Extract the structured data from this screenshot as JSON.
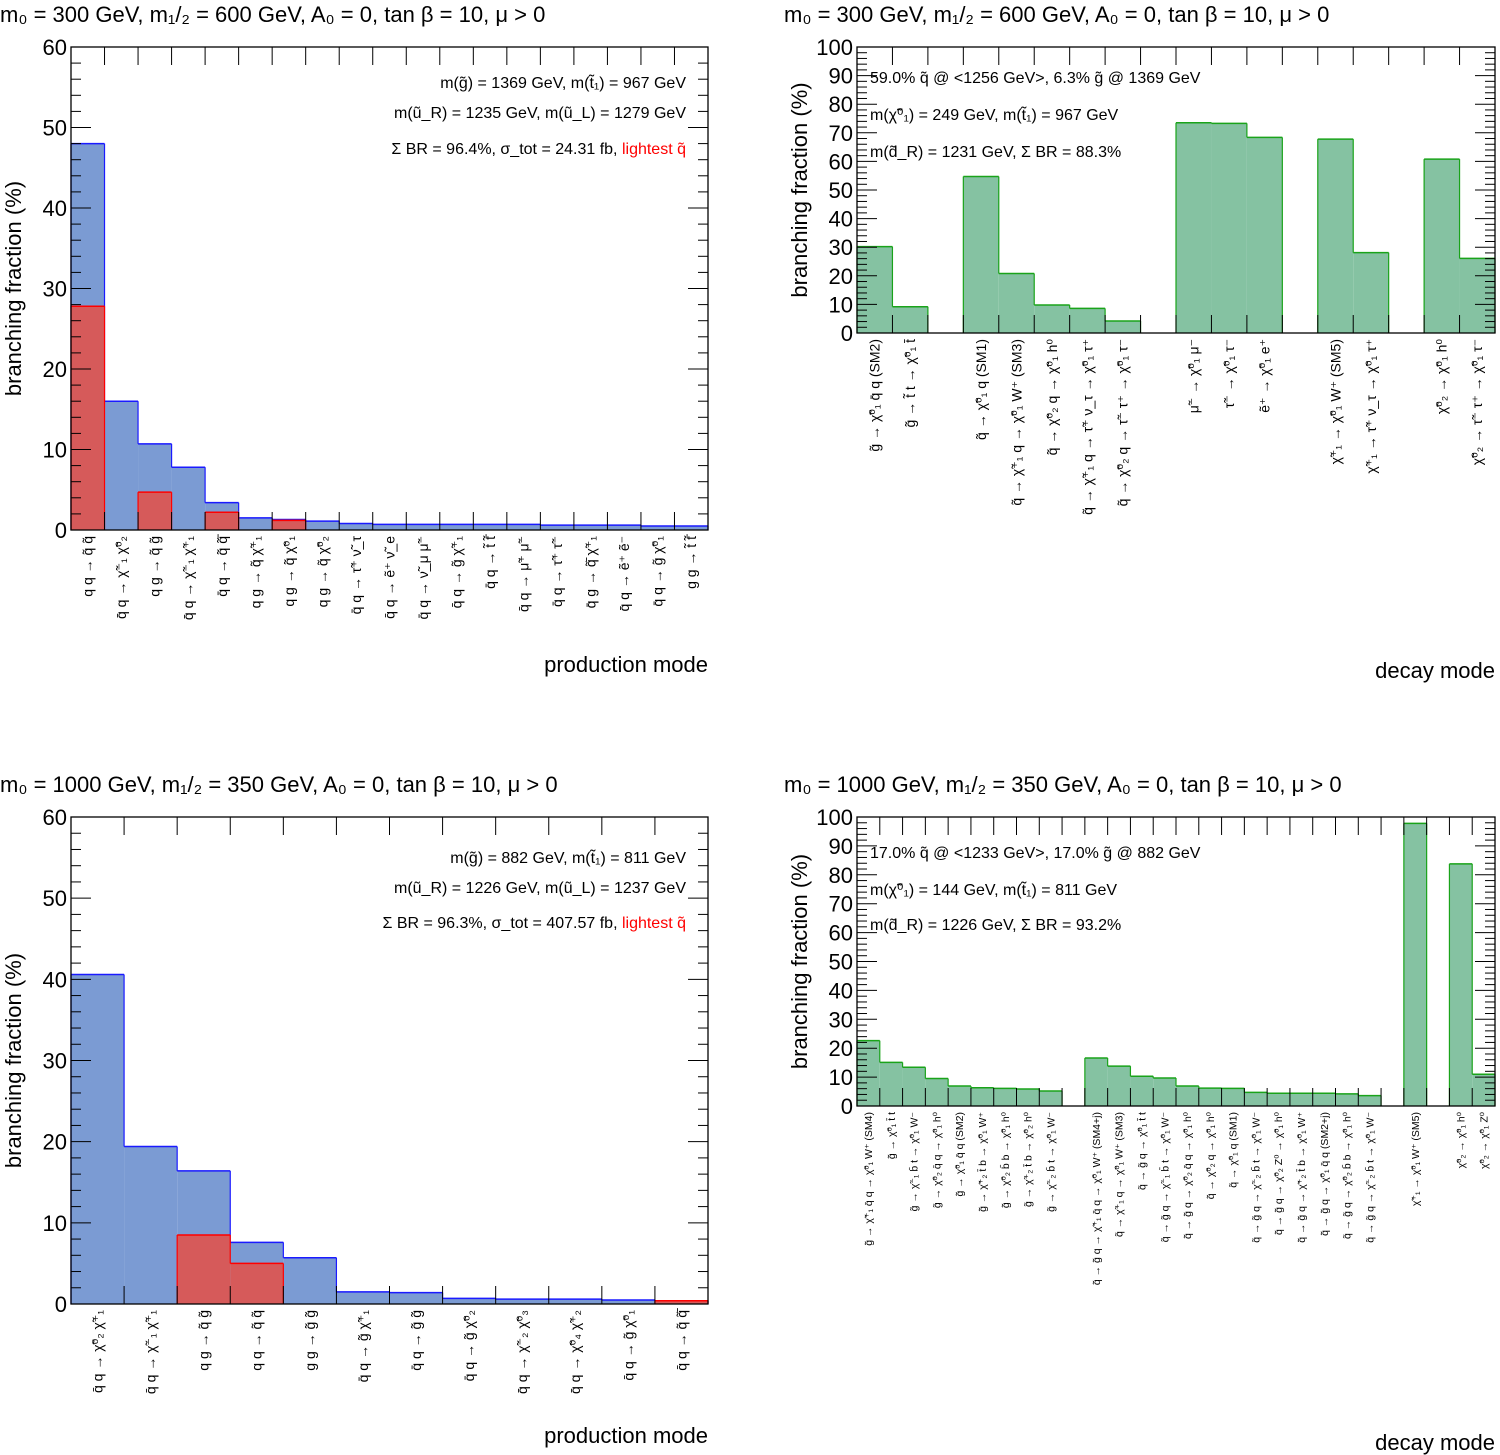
{
  "chart_data": [
    {
      "id": "p1",
      "type": "bar",
      "kind": "production",
      "title": "m₀ = 300 GeV, m₁/₂ = 600 GeV,  A₀ = 0, tan β = 10, μ > 0",
      "title_parts": {
        "m0": "300",
        "mhalf": "600",
        "A0": "0",
        "tanb": "10",
        "mu": "μ > 0"
      },
      "ylabel": "branching fraction (%)",
      "xlabel": "production mode",
      "ylim": [
        0,
        60
      ],
      "yticks": [
        0,
        10,
        20,
        30,
        40,
        50,
        60
      ],
      "info_lines": [
        "m(g̃) = 1369 GeV,  m(t̃₁) = 967 GeV",
        "m(ũ_R) = 1235 GeV, m(ũ_L) = 1279 GeV",
        "Σ BR = 96.4%, σ_tot = 24.31 fb, "
      ],
      "info_highlight": "lightest q̃",
      "categories": [
        "q q → q̃ q̃",
        "q̄ q → χ̃⁻₁ χ̃⁰₂",
        "q g → q̃ g̃",
        "q̄ q → χ̃⁻₁ χ̃⁺₁",
        "q̄ q → q̃ q̃̄",
        "q g → q̃ χ̃⁺₁",
        "q g → q̃ χ̃⁰₁",
        "q g → q̃ χ̃⁰₂",
        "q̄ q → τ̃⁺ ν̃_τ",
        "q̄ q → ẽ⁺ ν̃_e",
        "q̄ q → ν̃_μ μ̃⁻",
        "q̄ q → g̃ χ̃⁺₁",
        "q̄ q → t̃ t̃̄",
        "q̄ q → μ̃⁺ μ̃⁻",
        "q̄ q → τ̃⁺ τ̃⁻",
        "q̄ g → q̃̄ χ̃⁺₁",
        "q̄ q → ẽ⁺ ẽ⁻",
        "q̄ q → g̃ χ̃⁰₁",
        "g g → t̃ t̃̄"
      ],
      "series": [
        {
          "name": "total",
          "color": "#7b9bd3",
          "edge": "#1a1aff",
          "values": [
            48.0,
            16.0,
            10.7,
            7.8,
            3.4,
            1.5,
            1.3,
            1.1,
            0.8,
            0.7,
            0.7,
            0.7,
            0.7,
            0.7,
            0.6,
            0.6,
            0.6,
            0.5,
            0.5
          ]
        },
        {
          "name": "lightest q̃",
          "color": "#d65a5a",
          "edge": "#ff0000",
          "values": [
            27.8,
            0,
            4.7,
            0,
            2.2,
            0,
            1.2,
            0,
            0,
            0,
            0,
            0,
            0,
            0,
            0,
            0,
            0,
            0,
            0
          ]
        }
      ]
    },
    {
      "id": "p2",
      "type": "bar",
      "kind": "decay",
      "title": "m₀ = 300 GeV, m₁/₂ = 600 GeV,  A₀ = 0, tan β = 10, μ > 0",
      "title_parts": {
        "m0": "300",
        "mhalf": "600",
        "A0": "0",
        "tanb": "10",
        "mu": "μ > 0"
      },
      "ylabel": "branching fraction (%)",
      "xlabel": "decay mode",
      "ylim": [
        0,
        100
      ],
      "yticks": [
        0,
        10,
        20,
        30,
        40,
        50,
        60,
        70,
        80,
        90,
        100
      ],
      "info_lines": [
        "59.0% q̃ @ <1256 GeV>,  6.3% g̃ @ 1369 GeV",
        "m(χ̃⁰₁) = 249 GeV,  m(t̃₁) = 967 GeV",
        "m(d̃_R) = 1231 GeV, Σ BR = 88.3%"
      ],
      "categories": [
        "g̃ → χ̃⁰₁ q̄ q (SM2)",
        "g̃ → t̃ t → χ̃⁰₁ t̄",
        "",
        "q̃ → χ̃⁰₁ q (SM1)",
        "q̃ → χ̃⁺₁ q → χ̃⁰₁ W⁺ (SM3)",
        "q̃ → χ̃⁰₂ q → χ̃⁰₁ h⁰",
        "q̃ → χ̃⁺₁ q → τ̃⁺ ν_τ → χ̃⁰₁ τ⁺",
        "q̃ → χ̃⁰₂ q → τ̃⁻ τ⁺ → χ̃⁰₁ τ⁻",
        "",
        "μ̃⁻ → χ̃⁰₁ μ⁻",
        "τ̃⁻ → χ̃⁰₁ τ⁻",
        "ẽ⁺ → χ̃⁰₁ e⁺",
        "",
        "χ̃⁺₁ → χ̃⁰₁ W⁺ (SM5)",
        "χ̃⁺₁ → τ̃⁺ ν_τ → χ̃⁰₁ τ⁺",
        "",
        "χ̃⁰₂ → χ̃⁰₁ h⁰",
        "χ̃⁰₂ → τ̃⁻ τ⁺ → χ̃⁰₁ τ⁻"
      ],
      "series": [
        {
          "name": "decay",
          "color": "#85c2a2",
          "edge": "#1aa31a",
          "values": [
            30.2,
            9.2,
            0,
            54.7,
            20.8,
            9.8,
            8.6,
            4.2,
            0,
            73.5,
            73.3,
            68.4,
            0,
            67.8,
            28.1,
            0,
            60.8,
            26.1
          ]
        }
      ]
    },
    {
      "id": "p3",
      "type": "bar",
      "kind": "production",
      "title": "m₀ = 1000 GeV, m₁/₂ = 350 GeV,  A₀ = 0, tan β = 10, μ > 0",
      "title_parts": {
        "m0": "1000",
        "mhalf": "350",
        "A0": "0",
        "tanb": "10",
        "mu": "μ > 0"
      },
      "ylabel": "branching fraction (%)",
      "xlabel": "production mode",
      "ylim": [
        0,
        60
      ],
      "yticks": [
        0,
        10,
        20,
        30,
        40,
        50,
        60
      ],
      "info_lines": [
        "m(g̃) = 882 GeV,  m(t̃₁) = 811 GeV",
        "m(ũ_R) = 1226 GeV, m(ũ_L) = 1237 GeV",
        "Σ BR = 96.3%, σ_tot = 407.57 fb, "
      ],
      "info_highlight": "lightest q̃",
      "categories": [
        "q̄ q → χ̃⁰₂ χ̃⁺₁",
        "q̄ q → χ̃⁻₁ χ̃⁺₁",
        "q g → q̃ g̃",
        "q q → q̃ q̃",
        "g g → g̃ g̃",
        "q̄ q → g̃ χ̃⁺₁",
        "q̄ q → g̃ g̃",
        "q̄ q → g̃ χ̃⁰₂",
        "q̄ q → χ̃⁻₂ χ̃⁰₃",
        "q̄ q → χ̃⁰₄ χ̃⁺₂",
        "q̄ q → g̃ χ̃⁰₁",
        "q̄ q → q̃ q̃̄"
      ],
      "series": [
        {
          "name": "total",
          "color": "#7b9bd3",
          "edge": "#1a1aff",
          "values": [
            40.6,
            19.4,
            16.4,
            7.6,
            5.7,
            1.5,
            1.4,
            0.7,
            0.6,
            0.6,
            0.5,
            0.4
          ]
        },
        {
          "name": "lightest q̃",
          "color": "#d65a5a",
          "edge": "#ff0000",
          "values": [
            0,
            0,
            8.5,
            5.0,
            0,
            0,
            0,
            0,
            0,
            0,
            0,
            0.4
          ]
        }
      ]
    },
    {
      "id": "p4",
      "type": "bar",
      "kind": "decay",
      "title": "m₀ = 1000 GeV, m₁/₂ = 350 GeV,  A₀ = 0, tan β = 10, μ > 0",
      "title_parts": {
        "m0": "1000",
        "mhalf": "350",
        "A0": "0",
        "tanb": "10",
        "mu": "μ > 0"
      },
      "ylabel": "branching fraction (%)",
      "xlabel": "decay mode",
      "ylim": [
        0,
        100
      ],
      "yticks": [
        0,
        10,
        20,
        30,
        40,
        50,
        60,
        70,
        80,
        90,
        100
      ],
      "info_lines": [
        "17.0% q̃ @ <1233 GeV>,  17.0% g̃ @ 882 GeV",
        "m(χ̃⁰₁) = 144 GeV,  m(t̃₁) = 811 GeV",
        "m(d̃_R) = 1226 GeV, Σ BR = 93.2%"
      ],
      "categories": [
        "g̃ → χ̃⁺₁ q̄ q → χ̃⁰₁ W⁺ (SM4)",
        "g̃ → χ̃⁰₁ t̄ t",
        "g̃ → χ̃⁻₁ b̄ t → χ̃⁰₁ W⁻",
        "g̃ → χ̃⁰₂ q̄ q → χ̃⁰₁ h⁰",
        "g̃ → χ̃⁰₁ q̄ q (SM2)",
        "g̃ → χ̃⁺₂ t̄ b → χ̃⁰₁ W⁺",
        "g̃ → χ̃⁰₂ b̄ b → χ̃⁰₁ h⁰",
        "g̃ → χ̃⁺₂ t̄ b → χ̃⁰₂ h⁰",
        "g̃ → χ̃⁻₂ b̄ t → χ̃⁰₁ W⁻",
        "",
        "q̃ → g̃ q → χ̃⁺₁ q̄ q → χ̃⁰₁ W⁺ (SM4+j)",
        "q̃ → χ̃⁺₁ q → χ̃⁰₁ W⁺ (SM3)",
        "q̃ → g̃ q → χ̃⁰₁ t̄ t",
        "q̃ → g̃ q → χ̃⁻₁ b̄ t → χ̃⁰₁ W⁻",
        "q̃ → g̃ q → χ̃⁰₂ q̄ q → χ̃⁰₁ h⁰",
        "q̃ → χ̃⁰₂ q → χ̃⁰₁ h⁰",
        "q̃ → χ̃⁰₁ q (SM1)",
        "q̃ → g̃ q → χ̃⁻₂ b̄ t → χ̃⁰₁ W⁻",
        "q̃ → g̃ q → χ̃⁰₂ Z⁰ → χ̃⁰₁ h⁰",
        "q̃ → g̃ q → χ̃⁺₂ t̄ b → χ̃⁰₁ W⁺",
        "q̃ → g̃ q → χ̃⁰₁ q̄ q (SM2+j)",
        "q̃ → g̃ q → χ̃⁰₂ b̄ b → χ̃⁰₁ h⁰",
        "q̃ → g̃ q → χ̃⁻₂ b̄ t → χ̃⁰₁ W⁻",
        "",
        "χ̃⁺₁ → χ̃⁰₁ W⁺ (SM5)",
        "",
        "χ̃⁰₂ → χ̃⁰₁ h⁰",
        "χ̃⁰₂ → χ̃⁰₁ Z⁰"
      ],
      "series": [
        {
          "name": "decay",
          "color": "#85c2a2",
          "edge": "#1aa31a",
          "values": [
            22.6,
            15.1,
            13.4,
            9.5,
            6.9,
            6.3,
            6.1,
            5.9,
            5.2,
            0,
            16.6,
            13.8,
            10.3,
            9.7,
            6.9,
            6.2,
            6.1,
            4.7,
            4.4,
            4.4,
            4.4,
            4.2,
            3.6,
            0,
            97.8,
            0,
            83.8,
            11.0
          ]
        }
      ]
    }
  ]
}
